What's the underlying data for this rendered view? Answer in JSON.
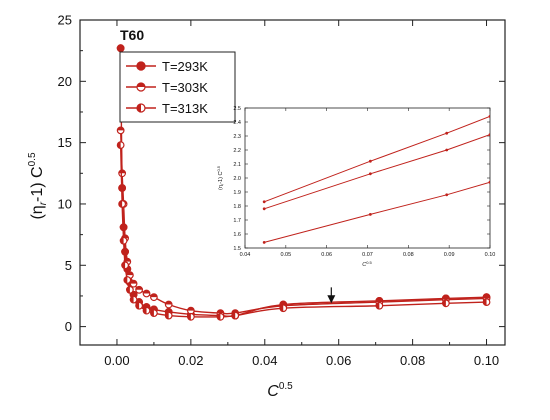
{
  "chart_data": [
    {
      "type": "line",
      "title": "T60",
      "xlabel": {
        "base": "C",
        "sup": "0.5"
      },
      "ylabel": {
        "prefix": "(η",
        "sub": "r",
        "mid": "-1) C",
        "sup": "0.5"
      },
      "xlim": [
        -0.01,
        0.105
      ],
      "ylim": [
        -1.5,
        25
      ],
      "xticks": [
        0.0,
        0.02,
        0.04,
        0.06,
        0.08,
        0.1
      ],
      "xtick_labels": [
        "0.00",
        "0.02",
        "0.04",
        "0.06",
        "0.08",
        "0.10"
      ],
      "yticks": [
        0,
        5,
        10,
        15,
        20,
        25
      ],
      "ytick_labels": [
        "0",
        "5",
        "10",
        "15",
        "20",
        "25"
      ],
      "legend_position": "top-left",
      "annotation": {
        "type": "arrow",
        "x": 0.058,
        "y_from": 3.2,
        "y_to": 1.9
      },
      "series": [
        {
          "name": "T=293K",
          "marker": "filled-circle",
          "color": "#c0221c",
          "x": [
            0.001,
            0.0014,
            0.0018,
            0.0022,
            0.0028,
            0.0035,
            0.0045,
            0.006,
            0.008,
            0.01,
            0.014,
            0.02,
            0.028,
            0.032,
            0.045,
            0.071,
            0.089,
            0.1
          ],
          "y": [
            22.7,
            11.3,
            8.1,
            6.1,
            4.7,
            3.6,
            2.6,
            2.0,
            1.6,
            1.4,
            1.2,
            1.0,
            0.9,
            0.9,
            1.8,
            2.1,
            2.3,
            2.4
          ]
        },
        {
          "name": "T=303K",
          "marker": "half-top-circle",
          "color": "#c0221c",
          "x": [
            0.001,
            0.0014,
            0.0018,
            0.0022,
            0.0028,
            0.0035,
            0.0045,
            0.006,
            0.008,
            0.01,
            0.014,
            0.02,
            0.028,
            0.032,
            0.045,
            0.071,
            0.089,
            0.1
          ],
          "y": [
            16.0,
            12.5,
            10.0,
            7.2,
            5.3,
            4.2,
            3.5,
            3.0,
            2.7,
            2.4,
            1.8,
            1.3,
            1.1,
            1.1,
            1.7,
            2.0,
            2.2,
            2.3
          ]
        },
        {
          "name": "T=313K",
          "marker": "half-left-circle",
          "color": "#c0221c",
          "x": [
            0.001,
            0.0014,
            0.0018,
            0.0022,
            0.0028,
            0.0035,
            0.0045,
            0.006,
            0.008,
            0.01,
            0.014,
            0.02,
            0.028,
            0.032,
            0.045,
            0.071,
            0.089,
            0.1
          ],
          "y": [
            14.8,
            10.0,
            7.0,
            5.0,
            3.8,
            3.0,
            2.2,
            1.7,
            1.3,
            1.1,
            0.9,
            0.8,
            0.8,
            0.9,
            1.5,
            1.7,
            1.9,
            2.0
          ]
        }
      ]
    },
    {
      "type": "line",
      "title": "",
      "xlabel": {
        "base": "C",
        "sup": "0.5"
      },
      "ylabel": {
        "prefix": "(η",
        "sub": "r",
        "mid": "-1) C",
        "sup": "0.5"
      },
      "xlim": [
        0.04,
        0.1
      ],
      "ylim": [
        1.5,
        2.5
      ],
      "xticks": [
        0.04,
        0.05,
        0.06,
        0.07,
        0.08,
        0.09,
        0.1
      ],
      "xtick_labels": [
        "0.04",
        "0.05",
        "0.06",
        "0.07",
        "0.08",
        "0.09",
        "0.10"
      ],
      "yticks": [
        1.5,
        1.6,
        1.7,
        1.8,
        1.9,
        2.0,
        2.1,
        2.2,
        2.3,
        2.4,
        2.5
      ],
      "ytick_labels": [
        "1.5",
        "1.6",
        "1.7",
        "1.8",
        "1.9",
        "2.0",
        "2.1",
        "2.2",
        "2.3",
        "2.4",
        "2.5"
      ],
      "series": [
        {
          "name": "T=293K",
          "color": "#c0221c",
          "x": [
            0.0447,
            0.0707,
            0.0894,
            0.1
          ],
          "y": [
            1.83,
            2.12,
            2.32,
            2.44
          ]
        },
        {
          "name": "T=303K",
          "color": "#c0221c",
          "x": [
            0.0447,
            0.0707,
            0.0894,
            0.1
          ],
          "y": [
            1.78,
            2.03,
            2.2,
            2.31
          ]
        },
        {
          "name": "T=313K",
          "color": "#c0221c",
          "x": [
            0.0447,
            0.0707,
            0.0894,
            0.1
          ],
          "y": [
            1.54,
            1.74,
            1.88,
            1.97
          ]
        }
      ]
    }
  ]
}
